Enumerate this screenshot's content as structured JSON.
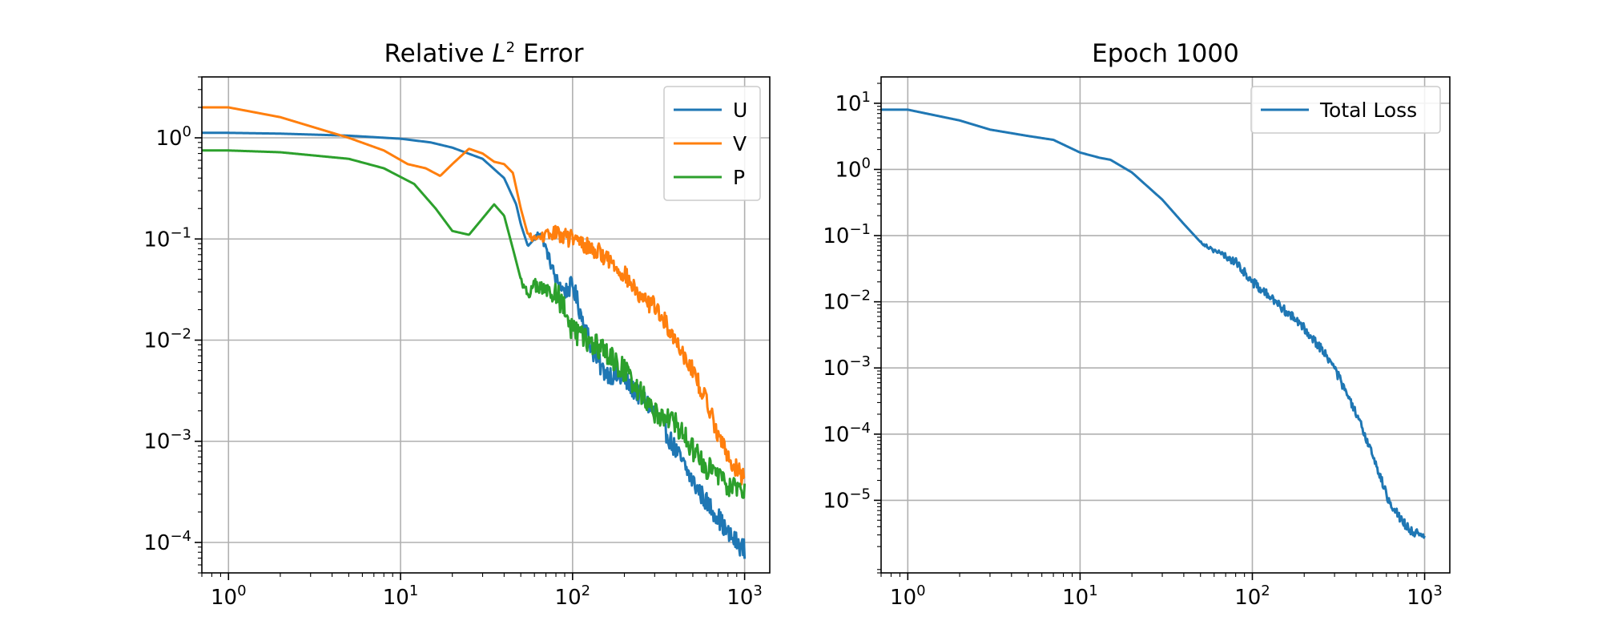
{
  "chart_data": [
    {
      "type": "line",
      "title_prefix": "Relative ",
      "title_math_base": "L",
      "title_math_exp": "2",
      "title_suffix": " Error",
      "x_scale": "log",
      "y_scale": "log",
      "xlim": [
        0.7,
        1400
      ],
      "ylim": [
        5e-05,
        4
      ],
      "x_ticks": [
        {
          "value": 1,
          "base": "10",
          "exp": "0"
        },
        {
          "value": 10,
          "base": "10",
          "exp": "1"
        },
        {
          "value": 100,
          "base": "10",
          "exp": "2"
        },
        {
          "value": 1000,
          "base": "10",
          "exp": "3"
        }
      ],
      "y_ticks": [
        {
          "value": 0.0001,
          "base": "10",
          "exp": "−4"
        },
        {
          "value": 0.001,
          "base": "10",
          "exp": "−3"
        },
        {
          "value": 0.01,
          "base": "10",
          "exp": "−2"
        },
        {
          "value": 0.1,
          "base": "10",
          "exp": "−1"
        },
        {
          "value": 1,
          "base": "10",
          "exp": "0"
        }
      ],
      "grid": true,
      "legend_position": "upper right",
      "series": [
        {
          "name": "U",
          "color": "#1f77b4",
          "noise": 0.1,
          "noise_start": 60,
          "points": [
            [
              0.7,
              1.12
            ],
            [
              1,
              1.12
            ],
            [
              2,
              1.1
            ],
            [
              5,
              1.05
            ],
            [
              10,
              0.98
            ],
            [
              15,
              0.9
            ],
            [
              20,
              0.8
            ],
            [
              30,
              0.62
            ],
            [
              40,
              0.4
            ],
            [
              47,
              0.22
            ],
            [
              50,
              0.14
            ],
            [
              55,
              0.085
            ],
            [
              60,
              0.1
            ],
            [
              65,
              0.12
            ],
            [
              70,
              0.08
            ],
            [
              80,
              0.04
            ],
            [
              90,
              0.03
            ],
            [
              100,
              0.035
            ],
            [
              110,
              0.02
            ],
            [
              130,
              0.008
            ],
            [
              150,
              0.005
            ],
            [
              200,
              0.004
            ],
            [
              300,
              0.002
            ],
            [
              400,
              0.0008
            ],
            [
              500,
              0.0004
            ],
            [
              600,
              0.00025
            ],
            [
              700,
              0.00018
            ],
            [
              800,
              0.00012
            ],
            [
              1000,
              8.5e-05
            ]
          ]
        },
        {
          "name": "V",
          "color": "#ff7f0e",
          "noise": 0.09,
          "noise_start": 55,
          "points": [
            [
              0.7,
              2.0
            ],
            [
              1,
              2.0
            ],
            [
              2,
              1.6
            ],
            [
              3,
              1.3
            ],
            [
              5,
              1.0
            ],
            [
              8,
              0.75
            ],
            [
              11,
              0.55
            ],
            [
              14,
              0.5
            ],
            [
              17,
              0.42
            ],
            [
              20,
              0.55
            ],
            [
              25,
              0.78
            ],
            [
              30,
              0.7
            ],
            [
              35,
              0.58
            ],
            [
              40,
              0.55
            ],
            [
              45,
              0.45
            ],
            [
              50,
              0.2
            ],
            [
              55,
              0.11
            ],
            [
              60,
              0.1
            ],
            [
              80,
              0.115
            ],
            [
              100,
              0.1
            ],
            [
              150,
              0.07
            ],
            [
              200,
              0.045
            ],
            [
              250,
              0.025
            ],
            [
              300,
              0.022
            ],
            [
              400,
              0.01
            ],
            [
              500,
              0.005
            ],
            [
              600,
              0.0025
            ],
            [
              700,
              0.0012
            ],
            [
              800,
              0.0007
            ],
            [
              1000,
              0.00042
            ]
          ]
        },
        {
          "name": "P",
          "color": "#2ca02c",
          "noise": 0.12,
          "noise_start": 50,
          "points": [
            [
              0.7,
              0.75
            ],
            [
              1,
              0.75
            ],
            [
              2,
              0.72
            ],
            [
              5,
              0.62
            ],
            [
              8,
              0.5
            ],
            [
              12,
              0.35
            ],
            [
              16,
              0.2
            ],
            [
              20,
              0.12
            ],
            [
              25,
              0.11
            ],
            [
              30,
              0.16
            ],
            [
              35,
              0.22
            ],
            [
              40,
              0.17
            ],
            [
              45,
              0.08
            ],
            [
              50,
              0.04
            ],
            [
              55,
              0.028
            ],
            [
              60,
              0.035
            ],
            [
              70,
              0.03
            ],
            [
              80,
              0.03
            ],
            [
              90,
              0.02
            ],
            [
              100,
              0.012
            ],
            [
              150,
              0.008
            ],
            [
              200,
              0.005
            ],
            [
              300,
              0.002
            ],
            [
              400,
              0.0015
            ],
            [
              500,
              0.0008
            ],
            [
              600,
              0.00055
            ],
            [
              700,
              0.00045
            ],
            [
              800,
              0.00038
            ],
            [
              1000,
              0.00032
            ]
          ]
        }
      ]
    },
    {
      "type": "line",
      "title": "Epoch 1000",
      "x_scale": "log",
      "y_scale": "log",
      "xlim": [
        0.7,
        1400
      ],
      "ylim": [
        8e-07,
        25
      ],
      "x_ticks": [
        {
          "value": 1,
          "base": "10",
          "exp": "0"
        },
        {
          "value": 10,
          "base": "10",
          "exp": "1"
        },
        {
          "value": 100,
          "base": "10",
          "exp": "2"
        },
        {
          "value": 1000,
          "base": "10",
          "exp": "3"
        }
      ],
      "y_ticks": [
        {
          "value": 1e-05,
          "base": "10",
          "exp": "−5"
        },
        {
          "value": 0.0001,
          "base": "10",
          "exp": "−4"
        },
        {
          "value": 0.001,
          "base": "10",
          "exp": "−3"
        },
        {
          "value": 0.01,
          "base": "10",
          "exp": "−2"
        },
        {
          "value": 0.1,
          "base": "10",
          "exp": "−1"
        },
        {
          "value": 1,
          "base": "10",
          "exp": "0"
        },
        {
          "value": 10,
          "base": "10",
          "exp": "1"
        }
      ],
      "grid": true,
      "legend_position": "upper right",
      "series": [
        {
          "name": "Total Loss",
          "color": "#1f77b4",
          "noise": 0.07,
          "noise_start": 50,
          "points": [
            [
              0.7,
              8
            ],
            [
              1,
              8
            ],
            [
              2,
              5.5
            ],
            [
              3,
              4
            ],
            [
              5,
              3.2
            ],
            [
              7,
              2.8
            ],
            [
              10,
              1.8
            ],
            [
              13,
              1.5
            ],
            [
              15,
              1.4
            ],
            [
              20,
              0.9
            ],
            [
              30,
              0.35
            ],
            [
              40,
              0.15
            ],
            [
              50,
              0.08
            ],
            [
              60,
              0.06
            ],
            [
              80,
              0.04
            ],
            [
              100,
              0.02
            ],
            [
              150,
              0.008
            ],
            [
              200,
              0.004
            ],
            [
              250,
              0.002
            ],
            [
              300,
              0.001
            ],
            [
              400,
              0.0002
            ],
            [
              500,
              5e-05
            ],
            [
              600,
              1.2e-05
            ],
            [
              700,
              6e-06
            ],
            [
              800,
              3.8e-06
            ],
            [
              1000,
              2.6e-06
            ]
          ]
        }
      ]
    }
  ]
}
